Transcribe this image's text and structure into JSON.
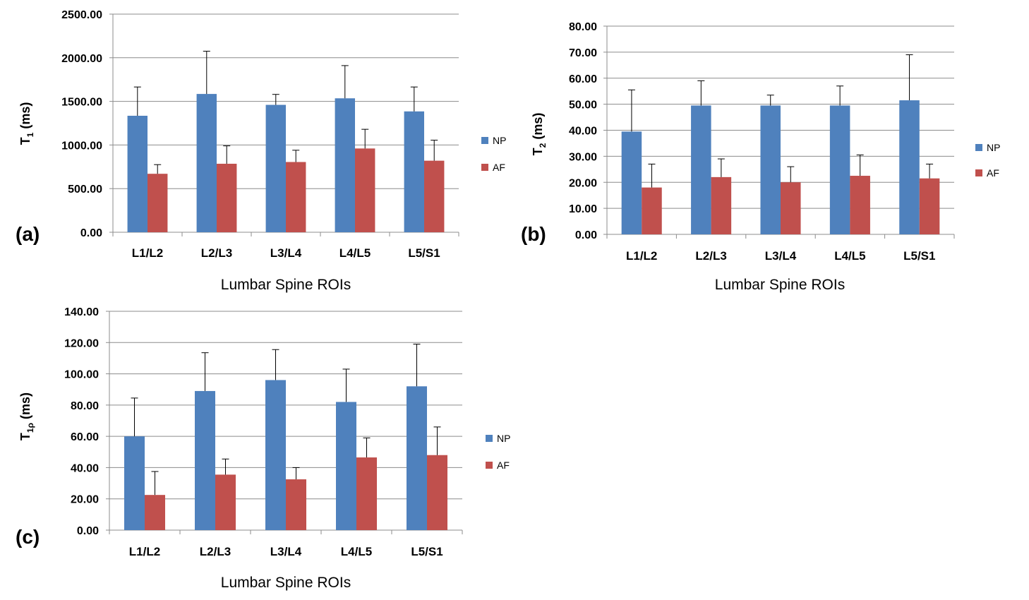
{
  "colors": {
    "np": "#4f81bd",
    "af": "#c0504d",
    "grid": "#8c8c8c",
    "axis": "#8c8c8c",
    "error": "#000000"
  },
  "chart_data": [
    {
      "type": "bar",
      "panel": "(a)",
      "categories": [
        "L1/L2",
        "L2/L3",
        "L3/L4",
        "L4/L5",
        "L5/S1"
      ],
      "series": [
        {
          "name": "NP",
          "values": [
            1335,
            1585,
            1460,
            1535,
            1385
          ],
          "errors": [
            330,
            490,
            120,
            375,
            280
          ]
        },
        {
          "name": "AF",
          "values": [
            670,
            785,
            805,
            960,
            820
          ],
          "errors": [
            105,
            205,
            135,
            220,
            235
          ]
        }
      ],
      "ylim": [
        0,
        2500
      ],
      "yticks": [
        "0.00",
        "500.00",
        "1000.00",
        "1500.00",
        "2000.00",
        "2500.00"
      ],
      "ylabel": {
        "main": "T",
        "sub": "1",
        "unit": "(ms)"
      },
      "xlabel": "Lumbar Spine ROIs",
      "legend": [
        "NP",
        "AF"
      ]
    },
    {
      "type": "bar",
      "panel": "(b)",
      "categories": [
        "L1/L2",
        "L2/L3",
        "L3/L4",
        "L4/L5",
        "L5/S1"
      ],
      "series": [
        {
          "name": "NP",
          "values": [
            39.5,
            49.5,
            49.5,
            49.5,
            51.5
          ],
          "errors": [
            16,
            9.5,
            4,
            7.5,
            17.5
          ]
        },
        {
          "name": "AF",
          "values": [
            18,
            22,
            20,
            22.5,
            21.5
          ],
          "errors": [
            9,
            7,
            6,
            8,
            5.5
          ]
        }
      ],
      "ylim": [
        0,
        80
      ],
      "yticks": [
        "0.00",
        "10.00",
        "20.00",
        "30.00",
        "40.00",
        "50.00",
        "60.00",
        "70.00",
        "80.00"
      ],
      "ylabel": {
        "main": "T",
        "sub": "2",
        "unit": "(ms)"
      },
      "xlabel": "Lumbar Spine ROIs",
      "legend": [
        "NP",
        "AF"
      ]
    },
    {
      "type": "bar",
      "panel": "(c)",
      "categories": [
        "L1/L2",
        "L2/L3",
        "L3/L4",
        "L4/L5",
        "L5/S1"
      ],
      "series": [
        {
          "name": "NP",
          "values": [
            60,
            89,
            96,
            82,
            92
          ],
          "errors": [
            24.5,
            24.5,
            19.5,
            21,
            27
          ]
        },
        {
          "name": "AF",
          "values": [
            22.5,
            35.5,
            32.5,
            46.5,
            48
          ],
          "errors": [
            15,
            10,
            7.5,
            12.5,
            18
          ]
        }
      ],
      "ylim": [
        0,
        140
      ],
      "yticks": [
        "0.00",
        "20.00",
        "40.00",
        "60.00",
        "80.00",
        "100.00",
        "120.00",
        "140.00"
      ],
      "ylabel": {
        "main": "T",
        "sub": "1ρ",
        "unit": "(ms)"
      },
      "xlabel": "Lumbar Spine ROIs",
      "legend": [
        "NP",
        "AF"
      ]
    }
  ]
}
